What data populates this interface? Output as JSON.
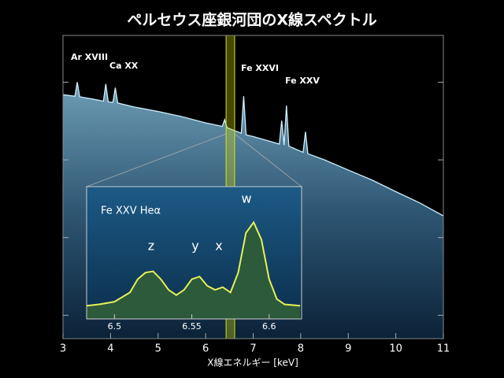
{
  "chart_data": {
    "type": "line",
    "title": "ペルセウス座銀河団のX線スペクトル",
    "x_label": "X線エネルギー [keV]",
    "log_y": true,
    "xlim": [
      3,
      11
    ],
    "xticks": [
      3,
      4,
      5,
      6,
      7,
      8,
      9,
      10,
      11
    ],
    "ylim": [
      0.0005,
      4
    ],
    "yticks": [
      0.001,
      0.01,
      0.1,
      1
    ],
    "series": [
      {
        "color": "#cdeeff",
        "x": [
          3.0,
          3.25,
          3.3,
          3.35,
          3.6,
          3.85,
          3.9,
          3.95,
          4.05,
          4.1,
          4.15,
          4.5,
          5.0,
          5.5,
          6.0,
          6.35,
          6.4,
          6.45,
          6.75,
          6.8,
          6.85,
          7.0,
          7.55,
          7.6,
          7.65,
          7.7,
          7.75,
          8.05,
          8.1,
          8.15,
          8.5,
          9.0,
          9.5,
          10.0,
          10.5,
          11.0
        ],
        "values": [
          0.69,
          0.66,
          1.0,
          0.65,
          0.61,
          0.57,
          0.95,
          0.56,
          0.55,
          0.85,
          0.54,
          0.48,
          0.42,
          0.36,
          0.3,
          0.27,
          0.33,
          0.26,
          0.22,
          0.66,
          0.21,
          0.2,
          0.16,
          0.32,
          0.155,
          0.5,
          0.15,
          0.125,
          0.23,
          0.12,
          0.1,
          0.074,
          0.055,
          0.039,
          0.028,
          0.019
        ]
      }
    ],
    "annotations": [
      "Ar XVIII",
      "Ca XX",
      "Fe XXVI",
      "Fe XXV"
    ],
    "zoom_range": [
      6.43,
      6.61
    ],
    "inset": {
      "type": "line",
      "title": "Fe XXV Heα",
      "xlim": [
        6.482,
        6.621
      ],
      "xticks": [
        6.5,
        6.55,
        6.6
      ],
      "ylim": [
        0,
        10
      ],
      "series": [
        {
          "color": "#e6f05a",
          "x": [
            6.482,
            6.49,
            6.5,
            6.51,
            6.515,
            6.52,
            6.525,
            6.53,
            6.535,
            6.54,
            6.545,
            6.55,
            6.555,
            6.56,
            6.565,
            6.57,
            6.575,
            6.58,
            6.585,
            6.59,
            6.595,
            6.6,
            6.605,
            6.61,
            6.62
          ],
          "values": [
            1.0,
            1.1,
            1.3,
            2.0,
            3.0,
            3.5,
            3.6,
            3.0,
            2.2,
            1.8,
            2.2,
            3.0,
            3.2,
            2.5,
            2.2,
            2.4,
            2.0,
            3.5,
            6.5,
            7.3,
            6.0,
            3.0,
            1.5,
            1.1,
            1.0
          ]
        }
      ],
      "peak_labels": [
        "z",
        "y",
        "x",
        "w"
      ]
    }
  }
}
